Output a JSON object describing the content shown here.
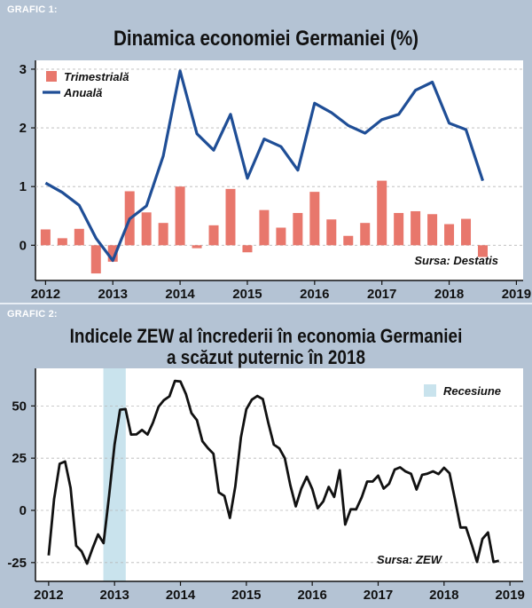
{
  "chart_data": [
    {
      "type": "bar+line",
      "label": "GRAFIC 1:",
      "title": "Dinamica economiei Germaniei (%)",
      "xlabel": "",
      "ylabel": "",
      "ylim": [
        -0.6,
        3.15
      ],
      "xlim": [
        2011.85,
        2019.1
      ],
      "yticks": [
        0,
        1,
        2,
        3
      ],
      "xticks": [
        2012,
        2013,
        2014,
        2015,
        2016,
        2017,
        2018,
        2019
      ],
      "legend": [
        "Trimestrială",
        "Anuală"
      ],
      "source": "Sursa: Destatis",
      "x": [
        2012.0,
        2012.25,
        2012.5,
        2012.75,
        2013.0,
        2013.25,
        2013.5,
        2013.75,
        2014.0,
        2014.25,
        2014.5,
        2014.75,
        2015.0,
        2015.25,
        2015.5,
        2015.75,
        2016.0,
        2016.25,
        2016.5,
        2016.75,
        2017.0,
        2017.25,
        2017.5,
        2017.75,
        2018.0,
        2018.25,
        2018.5
      ],
      "series": [
        {
          "name": "Trimestrială",
          "kind": "bar",
          "color": "#e8776c",
          "values": [
            0.27,
            0.12,
            0.28,
            -0.48,
            -0.28,
            0.92,
            0.56,
            0.38,
            1.0,
            -0.05,
            0.34,
            0.96,
            -0.12,
            0.6,
            0.3,
            0.55,
            0.91,
            0.44,
            0.16,
            0.38,
            1.1,
            0.55,
            0.58,
            0.53,
            0.36,
            0.45,
            -0.2
          ]
        },
        {
          "name": "Anuală",
          "kind": "line",
          "color": "#1f4e96",
          "values": [
            1.06,
            0.9,
            0.68,
            0.12,
            -0.26,
            0.45,
            0.67,
            1.52,
            2.97,
            1.9,
            1.62,
            2.23,
            1.14,
            1.81,
            1.68,
            1.28,
            2.42,
            2.26,
            2.04,
            1.91,
            2.14,
            2.23,
            2.64,
            2.78,
            2.08,
            1.97,
            1.1
          ]
        }
      ]
    },
    {
      "type": "line",
      "label": "GRAFIC 2:",
      "title": "Indicele ZEW al încrederii în economia Germaniei",
      "subtitle": "a scăzut puternic în 2018",
      "xlabel": "",
      "ylabel": "",
      "ylim": [
        -34,
        68
      ],
      "xlim": [
        2011.8,
        2019.2
      ],
      "yticks": [
        -25,
        0,
        25,
        50
      ],
      "xticks": [
        2012,
        2013,
        2014,
        2015,
        2016,
        2017,
        2018,
        2019
      ],
      "legend": [
        "Recesiune"
      ],
      "source": "Sursa: ZEW",
      "recession": {
        "start": 2012.83,
        "end": 2013.17,
        "color": "#c9e3ed"
      },
      "series": [
        {
          "name": "ZEW",
          "color": "#111111",
          "x": [
            2012.0,
            2012.083,
            2012.167,
            2012.25,
            2012.333,
            2012.417,
            2012.5,
            2012.583,
            2012.667,
            2012.75,
            2012.833,
            2012.917,
            2013.0,
            2013.083,
            2013.167,
            2013.25,
            2013.333,
            2013.417,
            2013.5,
            2013.583,
            2013.667,
            2013.75,
            2013.833,
            2013.917,
            2014.0,
            2014.083,
            2014.167,
            2014.25,
            2014.333,
            2014.417,
            2014.5,
            2014.583,
            2014.667,
            2014.75,
            2014.833,
            2014.917,
            2015.0,
            2015.083,
            2015.167,
            2015.25,
            2015.333,
            2015.417,
            2015.5,
            2015.583,
            2015.667,
            2015.75,
            2015.833,
            2015.917,
            2016.0,
            2016.083,
            2016.167,
            2016.25,
            2016.333,
            2016.417,
            2016.5,
            2016.583,
            2016.667,
            2016.75,
            2016.833,
            2016.917,
            2017.0,
            2017.083,
            2017.167,
            2017.25,
            2017.333,
            2017.417,
            2017.5,
            2017.583,
            2017.667,
            2017.75,
            2017.833,
            2017.917,
            2018.0,
            2018.083,
            2018.167,
            2018.25,
            2018.333,
            2018.417,
            2018.5,
            2018.583,
            2018.667,
            2018.75,
            2018.833
          ],
          "values": [
            -21.6,
            5.4,
            22.3,
            23.4,
            10.8,
            -16.9,
            -19.6,
            -25.5,
            -18.2,
            -11.5,
            -15.7,
            6.9,
            31.5,
            48.2,
            48.5,
            36.3,
            36.4,
            38.5,
            36.3,
            42.0,
            49.6,
            52.8,
            54.6,
            62.0,
            61.7,
            55.7,
            46.6,
            43.2,
            33.1,
            29.8,
            27.1,
            8.6,
            6.9,
            -3.6,
            11.5,
            34.9,
            48.4,
            53.0,
            54.8,
            53.3,
            41.9,
            31.5,
            29.7,
            25.0,
            12.1,
            1.9,
            10.4,
            16.1,
            10.2,
            1.0,
            4.3,
            11.2,
            6.4,
            19.2,
            -6.8,
            0.5,
            0.5,
            6.2,
            13.8,
            13.8,
            16.6,
            10.4,
            12.8,
            19.5,
            20.6,
            18.6,
            17.5,
            10.0,
            17.0,
            17.6,
            18.7,
            17.4,
            20.4,
            17.8,
            5.1,
            -8.2,
            -8.2,
            -16.1,
            -24.7,
            -13.7,
            -10.6,
            -24.7,
            -24.1
          ]
        }
      ]
    }
  ],
  "colors": {
    "bg": "#b4c3d4",
    "plot_bg": "#ffffff",
    "bar": "#e8776c",
    "annual": "#1f4e96",
    "zew": "#111111",
    "recession": "#c9e3ed"
  }
}
